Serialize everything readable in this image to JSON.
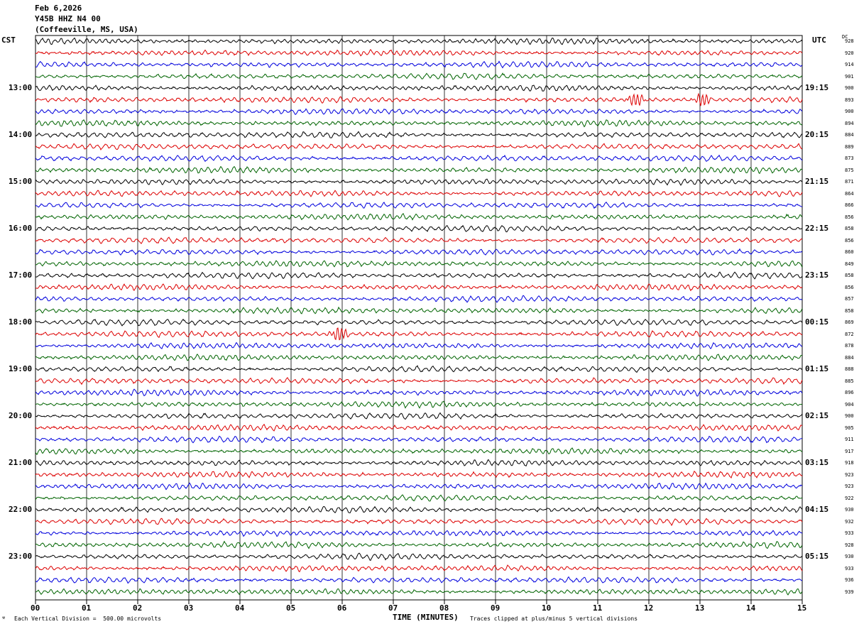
{
  "header": {
    "date": "Feb 6,2026",
    "station": "Y45B HHZ N4 00",
    "location": "(Coffeeville, MS, USA)"
  },
  "left_timezone": "CST",
  "right_timezone": "UTC",
  "dc_header": "DC",
  "footer": {
    "scale_note": "Each Vertical Division =  500.00 microvolts",
    "xaxis_title": "TIME (MINUTES)",
    "clip_note": "Traces clipped at plus/minus 5 vertical divisions"
  },
  "chart_data": {
    "type": "line",
    "xlabel": "TIME (MINUTES)",
    "xlim": [
      0,
      15
    ],
    "x_ticks": [
      "00",
      "01",
      "02",
      "03",
      "04",
      "05",
      "06",
      "07",
      "08",
      "09",
      "10",
      "11",
      "12",
      "13",
      "14",
      "15"
    ],
    "trace_minutes": 15,
    "trace_colors": [
      "#000000",
      "#dd0000",
      "#0000dd",
      "#006400"
    ],
    "left_hour_labels": [
      "13:00",
      "14:00",
      "15:00",
      "16:00",
      "17:00",
      "18:00",
      "19:00",
      "20:00",
      "21:00",
      "22:00",
      "23:00"
    ],
    "right_hour_labels": [
      "19:15",
      "20:15",
      "21:15",
      "22:15",
      "23:15",
      "00:15",
      "01:15",
      "02:15",
      "03:15",
      "04:15",
      "05:15"
    ],
    "dc_offsets": [
      928,
      920,
      914,
      901,
      900,
      893,
      900,
      894,
      884,
      889,
      873,
      875,
      871,
      864,
      866,
      856,
      858,
      856,
      860,
      849,
      858,
      856,
      857,
      858,
      869,
      872,
      878,
      884,
      888,
      885,
      896,
      904,
      900,
      905,
      911,
      917,
      918,
      923,
      923,
      922,
      930,
      932,
      933,
      928,
      930,
      933,
      936,
      939
    ],
    "events": [
      {
        "trace": 25,
        "minute": 5.9,
        "label": "local event"
      },
      {
        "trace": 5,
        "minute": 11.7,
        "label": "burst"
      },
      {
        "trace": 5,
        "minute": 13.0,
        "label": "burst"
      }
    ]
  }
}
